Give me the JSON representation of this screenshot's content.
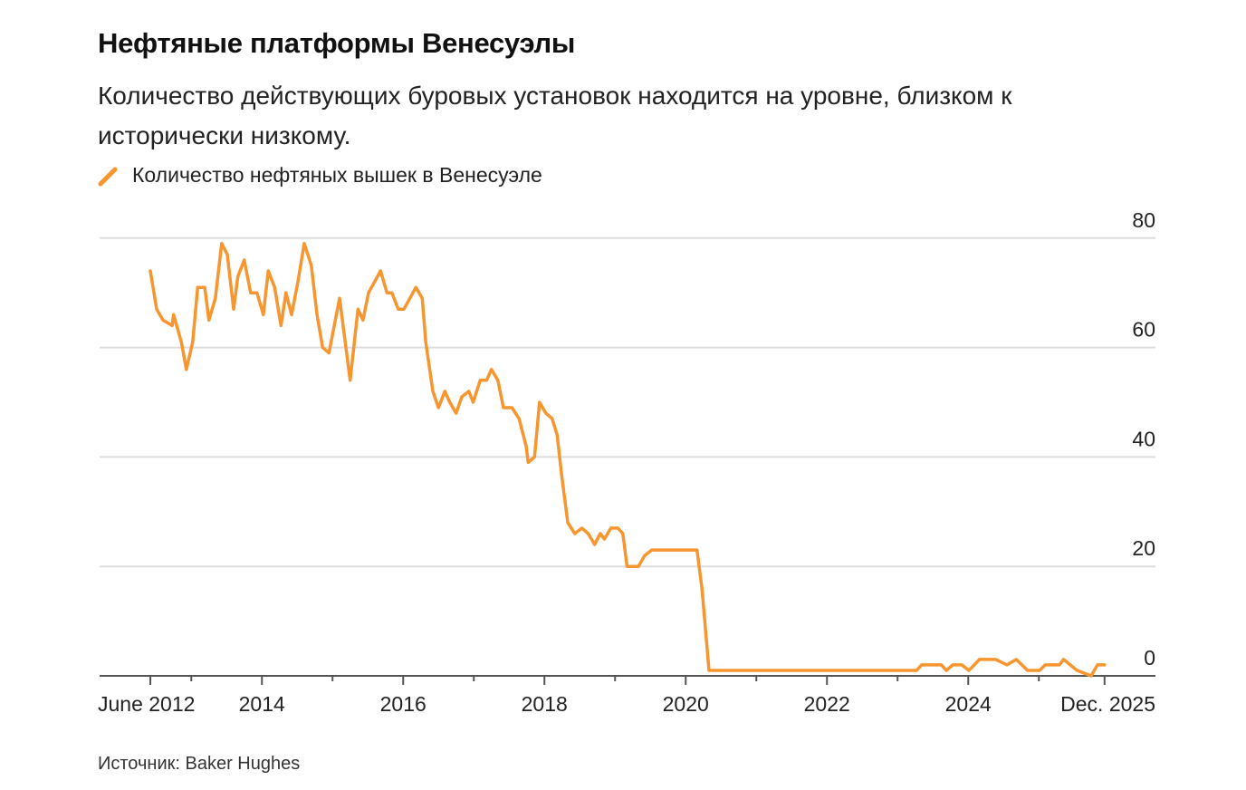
{
  "title": "Нефтяные платформы Венесуэлы",
  "subtitle": "Количество действующих буровых установок находится на уровне, близком к исторически низкому.",
  "source": "Источник: Baker Hughes",
  "colors": {
    "line": "#f7952f",
    "grid": "#dddddd",
    "axis": "#555555"
  },
  "chart_data": {
    "type": "line",
    "title": "Нефтяные платформы Венесуэлы",
    "xlabel": "",
    "ylabel": "",
    "ylim": [
      0,
      80
    ],
    "xlim": [
      2012.42,
      2025.93
    ],
    "grid": true,
    "legend_placement": "top-left",
    "y_ticks": [
      0,
      20,
      40,
      60,
      80
    ],
    "x_ticks": [
      {
        "value": 2012.42,
        "label": "June 2012"
      },
      {
        "value": 2014,
        "label": "2014"
      },
      {
        "value": 2016,
        "label": "2016"
      },
      {
        "value": 2018,
        "label": "2018"
      },
      {
        "value": 2020,
        "label": "2020"
      },
      {
        "value": 2022,
        "label": "2022"
      },
      {
        "value": 2024,
        "label": "2024"
      },
      {
        "value": 2025.93,
        "label": "Dec. 2025"
      }
    ],
    "minor_x_ticks": [
      2013,
      2015,
      2017,
      2019,
      2021,
      2023,
      2025
    ],
    "series": [
      {
        "name": "Количество нефтяных вышек в Венесуэле",
        "x": [
          2012.42,
          2012.51,
          2012.6,
          2012.73,
          2012.75,
          2012.86,
          2012.93,
          2013.02,
          2013.09,
          2013.19,
          2013.25,
          2013.34,
          2013.43,
          2013.51,
          2013.6,
          2013.66,
          2013.75,
          2013.84,
          2013.93,
          2014.02,
          2014.09,
          2014.18,
          2014.27,
          2014.34,
          2014.42,
          2014.51,
          2014.6,
          2014.7,
          2014.78,
          2014.86,
          2014.95,
          2015.1,
          2015.25,
          2015.36,
          2015.43,
          2015.51,
          2015.68,
          2015.77,
          2015.84,
          2015.93,
          2016.01,
          2016.18,
          2016.27,
          2016.32,
          2016.42,
          2016.5,
          2016.59,
          2016.66,
          2016.75,
          2016.83,
          2016.93,
          2016.99,
          2017.09,
          2017.18,
          2017.25,
          2017.34,
          2017.42,
          2017.54,
          2017.64,
          2017.74,
          2017.77,
          2017.86,
          2017.93,
          2018.02,
          2018.11,
          2018.18,
          2018.24,
          2018.33,
          2018.43,
          2018.53,
          2018.62,
          2018.71,
          2018.79,
          2018.85,
          2018.94,
          2019.04,
          2019.11,
          2019.17,
          2019.33,
          2019.42,
          2019.52,
          2020.16,
          2020.23,
          2020.33,
          2023.27,
          2023.34,
          2023.62,
          2023.69,
          2023.78,
          2023.91,
          2024.01,
          2024.16,
          2024.39,
          2024.55,
          2024.68,
          2024.84,
          2025.01,
          2025.09,
          2025.29,
          2025.35,
          2025.54,
          2025.74,
          2025.83,
          2025.93
        ],
        "values": [
          74,
          67,
          65,
          64,
          66,
          61,
          56,
          61,
          71,
          71,
          65,
          69,
          79,
          77,
          67,
          73,
          76,
          70,
          70,
          66,
          74,
          71,
          64,
          70,
          66,
          72,
          79,
          75,
          66,
          60,
          59,
          69,
          54,
          67,
          65,
          70,
          74,
          70,
          70,
          67,
          67,
          71,
          69,
          61,
          52,
          49,
          52,
          50,
          48,
          51,
          52,
          50,
          54,
          54,
          56,
          54,
          49,
          49,
          47,
          42,
          39,
          40,
          50,
          48,
          47,
          44,
          37,
          28,
          26,
          27,
          26,
          24,
          26,
          25,
          27,
          27,
          26,
          20,
          20,
          22,
          23,
          23,
          16,
          1,
          1,
          2,
          2,
          1,
          2,
          2,
          1,
          3,
          3,
          2,
          3,
          1,
          1,
          2,
          2,
          3,
          1,
          0,
          2,
          2
        ]
      }
    ]
  }
}
